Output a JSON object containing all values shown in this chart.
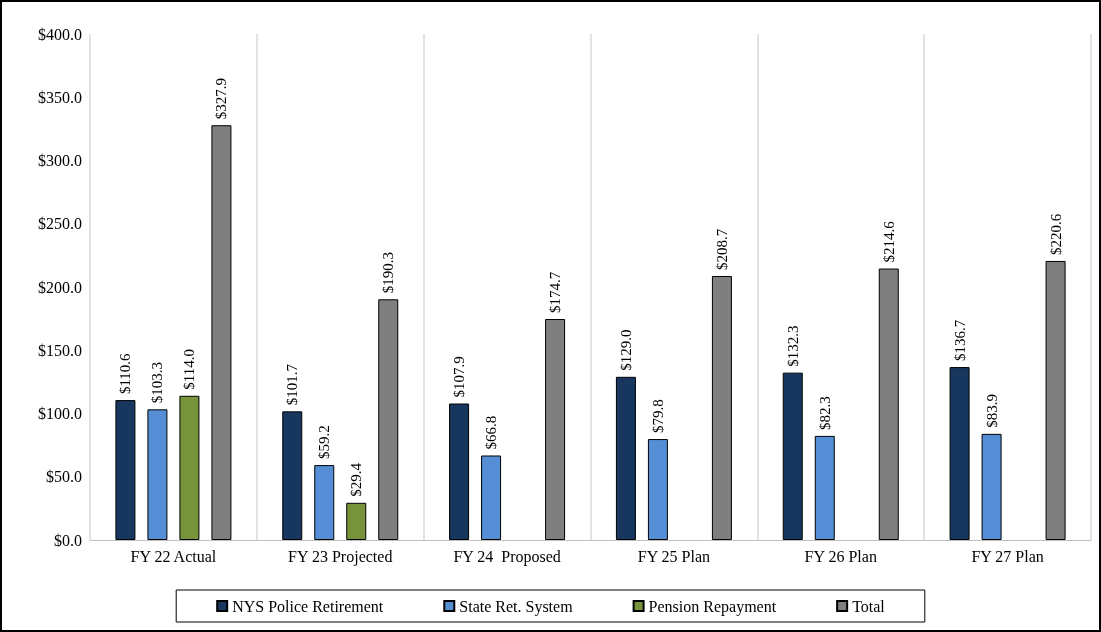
{
  "chart_data": {
    "type": "bar",
    "categories": [
      "FY 22 Actual",
      "FY 23 Projected",
      "FY 24  Proposed",
      "FY 25 Plan",
      "FY 26 Plan",
      "FY 27 Plan"
    ],
    "series": [
      {
        "name": "NYS Police Retirement",
        "color": "#17375e",
        "values": [
          110.6,
          101.7,
          107.9,
          129.0,
          132.3,
          136.7
        ],
        "value_labels": [
          "$110.6",
          "$101.7",
          "$107.9",
          "$129.0",
          "$132.3",
          "$136.7"
        ]
      },
      {
        "name": "State Ret. System",
        "color": "#558ed5",
        "values": [
          103.3,
          59.2,
          66.8,
          79.8,
          82.3,
          83.9
        ],
        "value_labels": [
          "$103.3",
          "$59.2",
          "$66.8",
          "$79.8",
          "$82.3",
          "$83.9"
        ]
      },
      {
        "name": "Pension Repayment",
        "color": "#77933c",
        "values": [
          114.0,
          29.4,
          null,
          null,
          null,
          null
        ],
        "value_labels": [
          "$114.0",
          "$29.4",
          null,
          null,
          null,
          null
        ]
      },
      {
        "name": "Total",
        "color": "#7f7f7f",
        "values": [
          327.9,
          190.3,
          174.7,
          208.7,
          214.6,
          220.6
        ],
        "value_labels": [
          "$327.9",
          "$190.3",
          "$174.7",
          "$208.7",
          "$214.6",
          "$220.6"
        ]
      }
    ],
    "ylim": [
      0,
      400
    ],
    "yticks": [
      {
        "value": 0,
        "label": "$0.0"
      },
      {
        "value": 50,
        "label": "$50.0"
      },
      {
        "value": 100,
        "label": "$100.0"
      },
      {
        "value": 150,
        "label": "$150.0"
      },
      {
        "value": 200,
        "label": "$200.0"
      },
      {
        "value": 250,
        "label": "$250.0"
      },
      {
        "value": 300,
        "label": "$300.0"
      },
      {
        "value": 350,
        "label": "$350.0"
      },
      {
        "value": 400,
        "label": "$400.0"
      }
    ],
    "grid": "x",
    "legend": "bottom"
  }
}
